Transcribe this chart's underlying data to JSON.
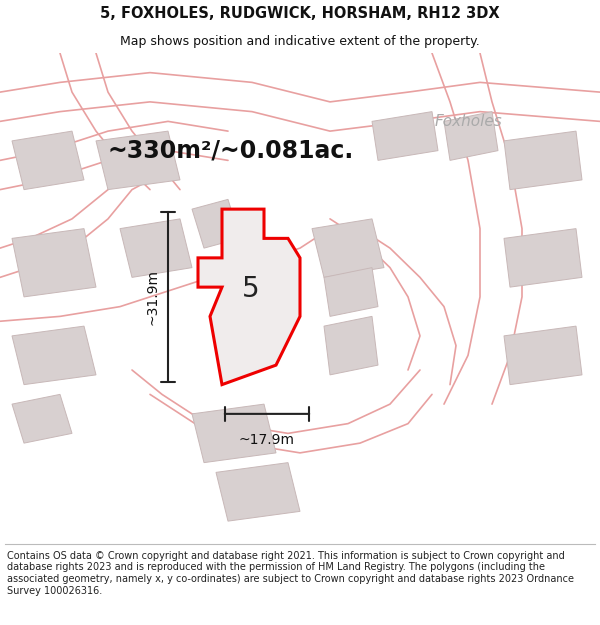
{
  "title": "5, FOXHOLES, RUDGWICK, HORSHAM, RH12 3DX",
  "subtitle": "Map shows position and indicative extent of the property.",
  "area_label": "~330m²/~0.081ac.",
  "plot_number": "5",
  "dim_height": "~31.9m",
  "dim_width": "~17.9m",
  "road_label": "Foxholes",
  "footer": "Contains OS data © Crown copyright and database right 2021. This information is subject to Crown copyright and database rights 2023 and is reproduced with the permission of HM Land Registry. The polygons (including the associated geometry, namely x, y co-ordinates) are subject to Crown copyright and database rights 2023 Ordnance Survey 100026316.",
  "bg_color": "#ffffff",
  "map_bg": "#ffffff",
  "road_fill": "#fce8e8",
  "road_color": "#e8a0a0",
  "building_color": "#d8d0d0",
  "building_edge": "#c8b8b8",
  "plot_fill": "#f0ecec",
  "plot_outline": "#ee0000",
  "title_fontsize": 10.5,
  "subtitle_fontsize": 9,
  "area_fontsize": 17,
  "plot_num_fontsize": 20,
  "dim_fontsize": 10,
  "footer_fontsize": 7,
  "road_label_fontsize": 11,
  "title_color": "#111111",
  "subtitle_color": "#111111"
}
